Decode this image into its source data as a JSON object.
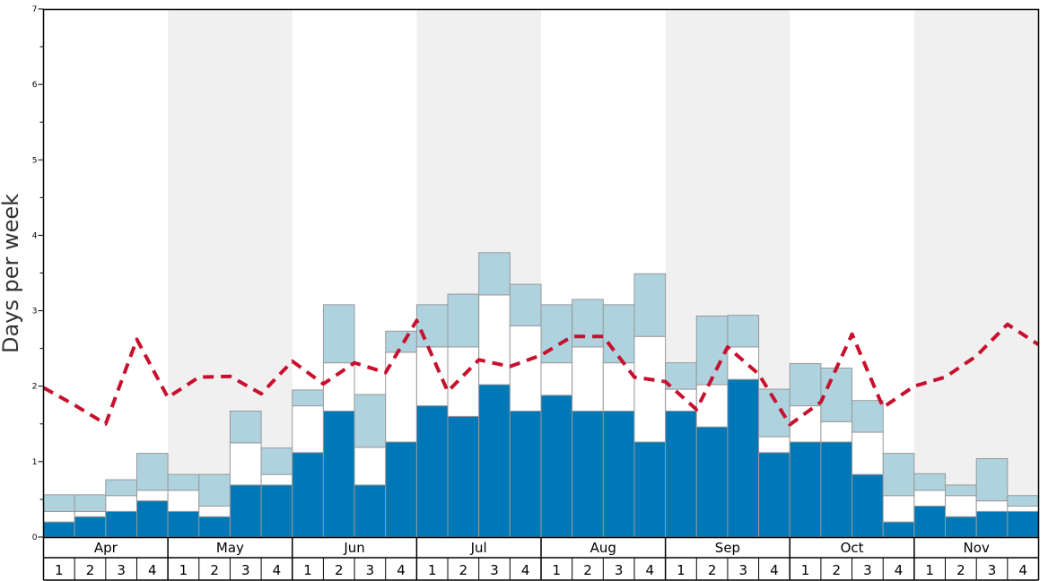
{
  "chart_data": {
    "type": "bar",
    "stacked": true,
    "ylabel": "Days per week",
    "ylim": [
      0,
      7
    ],
    "yticks": [
      "0",
      "1",
      "2",
      "3",
      "4",
      "5",
      "6",
      "7"
    ],
    "months": [
      "Apr",
      "May",
      "Jun",
      "Jul",
      "Aug",
      "Sep",
      "Oct",
      "Nov"
    ],
    "weeks": [
      "1",
      "2",
      "3",
      "4"
    ],
    "colors": {
      "bottom": "#0077b6",
      "middle": "#ffffff",
      "top": "#aed3df",
      "line": "#c8102e",
      "band": "#f0f0f0",
      "bar_edge": "#999999"
    },
    "series": [
      {
        "name": "bottom",
        "values": [
          0.2,
          0.27,
          0.34,
          0.48,
          0.34,
          0.27,
          0.69,
          0.69,
          1.12,
          1.67,
          0.69,
          1.26,
          1.74,
          1.6,
          2.02,
          1.67,
          1.88,
          1.67,
          1.67,
          1.26,
          1.67,
          1.46,
          2.09,
          1.12,
          1.26,
          1.26,
          0.83,
          0.2,
          0.41,
          0.27,
          0.34,
          0.34
        ]
      },
      {
        "name": "middle",
        "values": [
          0.14,
          0.07,
          0.21,
          0.14,
          0.28,
          0.14,
          0.56,
          0.14,
          0.62,
          0.64,
          0.5,
          1.19,
          0.78,
          0.92,
          1.19,
          1.13,
          0.43,
          0.85,
          0.64,
          1.4,
          0.29,
          0.56,
          0.43,
          0.21,
          0.48,
          0.27,
          0.56,
          0.35,
          0.21,
          0.28,
          0.14,
          0.07
        ]
      },
      {
        "name": "top",
        "values": [
          0.22,
          0.22,
          0.21,
          0.49,
          0.21,
          0.42,
          0.42,
          0.35,
          0.21,
          0.77,
          0.7,
          0.28,
          0.56,
          0.7,
          0.56,
          0.55,
          0.77,
          0.63,
          0.77,
          0.83,
          0.35,
          0.91,
          0.42,
          0.63,
          0.56,
          0.71,
          0.42,
          0.56,
          0.22,
          0.14,
          0.56,
          0.14
        ]
      }
    ],
    "line": {
      "name": "average",
      "values": [
        1.98,
        1.75,
        1.5,
        2.62,
        1.85,
        2.12,
        2.13,
        1.9,
        2.33,
        2.03,
        2.31,
        2.18,
        2.87,
        1.93,
        2.35,
        2.26,
        2.41,
        2.66,
        2.66,
        2.12,
        2.06,
        1.69,
        2.52,
        2.16,
        1.49,
        1.79,
        2.69,
        1.72,
        2.0,
        2.12,
        2.4,
        2.82,
        2.55
      ]
    }
  }
}
